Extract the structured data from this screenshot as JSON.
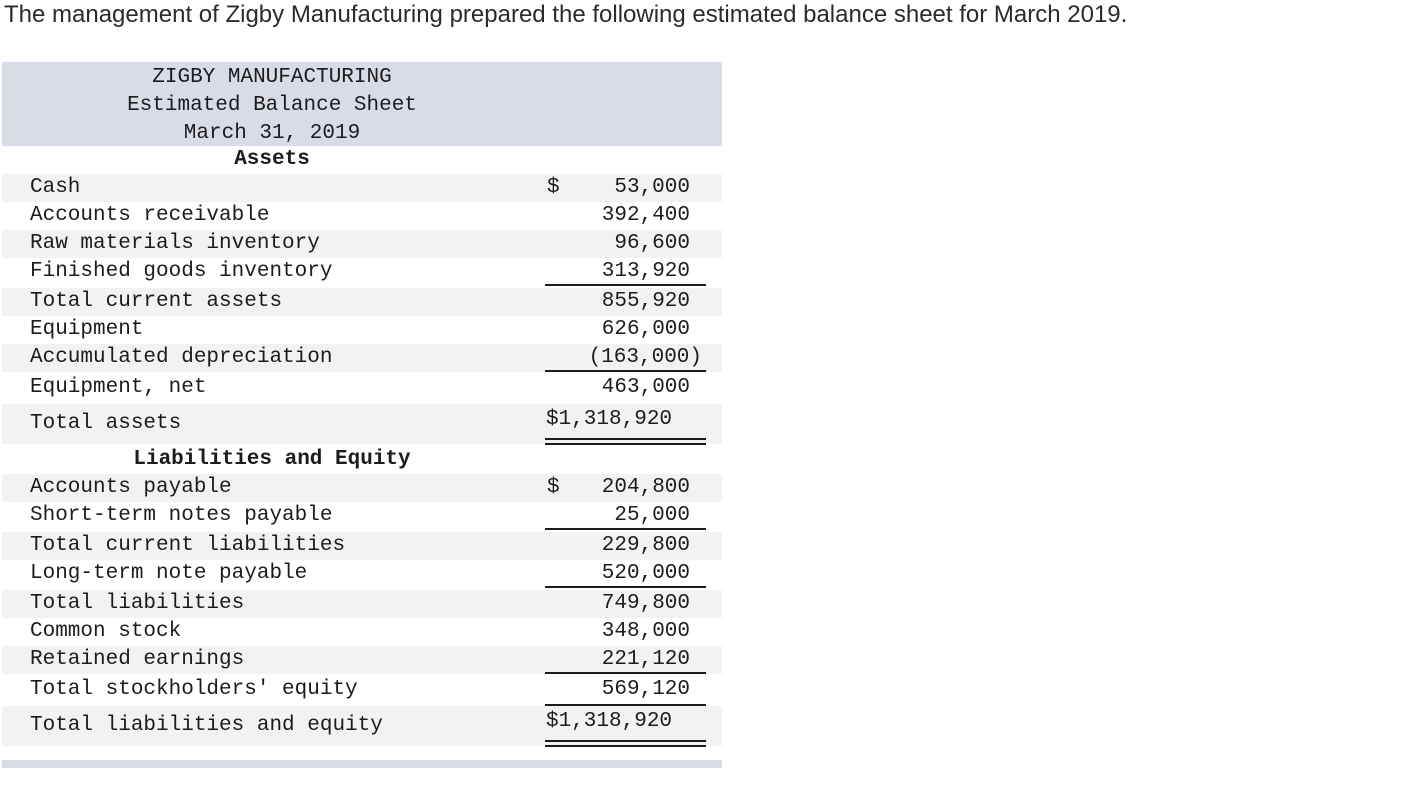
{
  "intro": "The management of Zigby Manufacturing prepared the following estimated balance sheet for March 2019.",
  "header": {
    "company": "ZIGBY MANUFACTURING",
    "statement": "Estimated Balance Sheet",
    "date": "March 31, 2019"
  },
  "assets": {
    "section_title": "Assets",
    "currency": "$",
    "rows": [
      {
        "label": "Cash",
        "amount": "53,000"
      },
      {
        "label": "Accounts receivable",
        "amount": "392,400"
      },
      {
        "label": "Raw materials inventory",
        "amount": "96,600"
      },
      {
        "label": "Finished goods inventory",
        "amount": "313,920"
      },
      {
        "label": "Total current assets",
        "amount": "855,920"
      },
      {
        "label": "Equipment",
        "amount": "626,000"
      },
      {
        "label": "Accumulated depreciation",
        "amount": "(163,000)"
      },
      {
        "label": "Equipment, net",
        "amount": "463,000"
      },
      {
        "label": "Total assets",
        "amount": "$1,318,920"
      }
    ]
  },
  "liabilities": {
    "section_title": "Liabilities and Equity",
    "currency": "$",
    "rows": [
      {
        "label": "Accounts payable",
        "amount": "204,800"
      },
      {
        "label": "Short-term notes payable",
        "amount": "25,000"
      },
      {
        "label": "Total current liabilities",
        "amount": "229,800"
      },
      {
        "label": "Long-term note payable",
        "amount": "520,000"
      },
      {
        "label": "Total liabilities",
        "amount": "749,800"
      },
      {
        "label": "Common stock",
        "amount": "348,000"
      },
      {
        "label": "Retained earnings",
        "amount": "221,120"
      },
      {
        "label": "Total stockholders' equity",
        "amount": "569,120"
      },
      {
        "label": "Total liabilities and equity",
        "amount": "$1,318,920"
      }
    ]
  }
}
